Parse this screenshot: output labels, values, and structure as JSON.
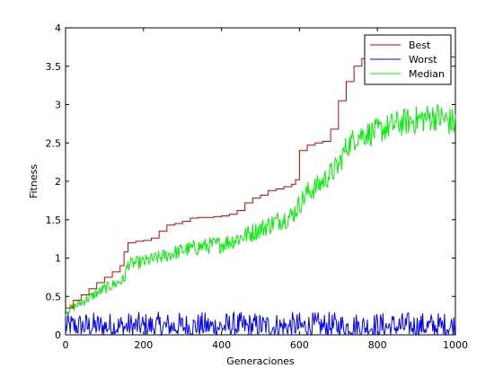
{
  "chart_data": {
    "type": "line",
    "xlabel": "Generaciones",
    "ylabel": "Fitness",
    "xlim": [
      0,
      1000
    ],
    "ylim": [
      0,
      4
    ],
    "xticks": [
      0,
      200,
      400,
      600,
      800,
      1000
    ],
    "yticks": [
      0,
      0.5,
      1,
      1.5,
      2,
      2.5,
      3,
      3.5,
      4
    ],
    "xtick_labels": [
      "0",
      "200",
      "400",
      "600",
      "800",
      "1000"
    ],
    "ytick_labels": [
      "0",
      "0.5",
      "1",
      "1.5",
      "2",
      "2.5",
      "3",
      "3.5",
      "4"
    ],
    "grid": false,
    "legend_position": "top-right",
    "series": [
      {
        "name": "Best",
        "color": "#cc0000",
        "x": [
          0,
          20,
          40,
          60,
          80,
          100,
          120,
          140,
          150,
          160,
          180,
          200,
          220,
          240,
          260,
          280,
          300,
          320,
          340,
          360,
          380,
          400,
          420,
          440,
          460,
          480,
          500,
          520,
          540,
          560,
          580,
          590,
          600,
          620,
          640,
          660,
          680,
          700,
          720,
          740,
          760,
          770,
          1000
        ],
        "values": [
          0.35,
          0.45,
          0.52,
          0.6,
          0.68,
          0.75,
          0.82,
          0.9,
          1.08,
          1.2,
          1.22,
          1.23,
          1.26,
          1.35,
          1.43,
          1.45,
          1.48,
          1.52,
          1.53,
          1.53,
          1.54,
          1.55,
          1.57,
          1.62,
          1.72,
          1.78,
          1.82,
          1.88,
          1.9,
          1.93,
          1.96,
          2.02,
          2.4,
          2.47,
          2.5,
          2.52,
          2.68,
          3.05,
          3.3,
          3.5,
          3.6,
          3.62,
          3.62
        ]
      },
      {
        "name": "Worst",
        "color": "#0000ff",
        "x": [
          0,
          1000
        ],
        "values": [
          0.1,
          0.1
        ],
        "noise_range": [
          0.0,
          0.3
        ]
      },
      {
        "name": "Median",
        "color": "#00ee00",
        "x": [
          0,
          50,
          100,
          150,
          160,
          200,
          250,
          300,
          350,
          400,
          450,
          500,
          550,
          580,
          600,
          620,
          650,
          700,
          720,
          750,
          800,
          850,
          900,
          950,
          1000
        ],
        "values": [
          0.3,
          0.45,
          0.6,
          0.72,
          0.92,
          0.95,
          1.02,
          1.1,
          1.15,
          1.18,
          1.27,
          1.38,
          1.5,
          1.55,
          1.7,
          1.85,
          1.95,
          2.2,
          2.45,
          2.6,
          2.65,
          2.75,
          2.8,
          2.85,
          2.75
        ],
        "noise_amplitude": 0.2
      }
    ]
  }
}
